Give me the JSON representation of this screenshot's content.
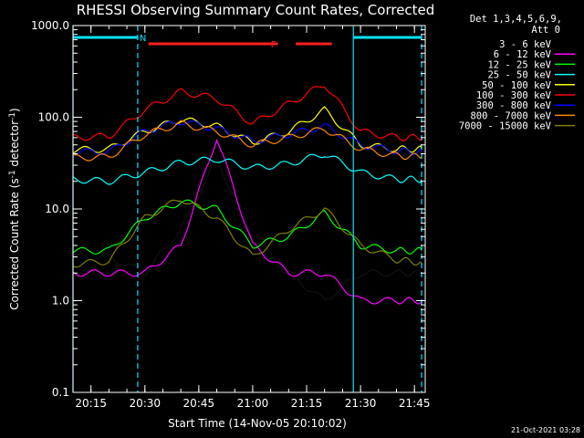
{
  "chart_data": {
    "type": "line",
    "title": "RHESSI Observing Summary Count Rates, Corrected",
    "xlabel": "Start Time (14-Nov-05 20:10:02)",
    "ylabel": "Corrected Count Rate (s⁻¹ detector⁻¹)",
    "ylabel_main": "Corrected Count Rate (s",
    "ylabel_sup1": "-1",
    "ylabel_mid": " detector",
    "ylabel_sup2": "-1",
    "ylabel_end": ")",
    "yscale": "log",
    "ylim": [
      0.1,
      1000
    ],
    "xlim": [
      "20:10",
      "21:48"
    ],
    "x_ticks": [
      "20:15",
      "20:30",
      "20:45",
      "21:00",
      "21:15",
      "21:30",
      "21:45"
    ],
    "y_ticks": [
      "0.1",
      "1.0",
      "10.0",
      "100.0",
      "1000.0"
    ],
    "legend_header": [
      "Det 1,3,4,5,6,9,",
      "Att 0"
    ],
    "legend_placement": "right",
    "timestamp": "21-Oct-2021 03:28",
    "flags": [
      {
        "label": "N",
        "color": "#00e5ff",
        "segments": [
          [
            "20:10",
            "20:28"
          ],
          [
            "21:28",
            "21:47"
          ]
        ]
      },
      {
        "label": "F",
        "color": "#ff2020",
        "segments": [
          [
            "20:31",
            "21:07"
          ],
          [
            "21:12",
            "21:22"
          ]
        ]
      }
    ],
    "markers": [
      {
        "time": "20:10",
        "style": "solid",
        "color": "#00e5ff"
      },
      {
        "time": "20:28",
        "style": "dashed",
        "color": "#00e5ff"
      },
      {
        "time": "21:28",
        "style": "solid",
        "color": "#00e5ff"
      },
      {
        "time": "21:47",
        "style": "dashed",
        "color": "#00e5ff"
      }
    ],
    "x": [
      "20:10",
      "20:20",
      "20:30",
      "20:40",
      "20:50",
      "21:00",
      "21:10",
      "21:20",
      "21:30",
      "21:40",
      "21:47"
    ],
    "series": [
      {
        "name": "3 - 6 keV",
        "color": "#000000",
        "values": [
          3,
          3,
          2,
          6,
          35,
          5,
          2,
          1,
          2,
          2,
          2
        ]
      },
      {
        "name": "6 - 12 keV",
        "color": "#ff00ff",
        "values": [
          2,
          2,
          2,
          4,
          60,
          4,
          2,
          2,
          1,
          1,
          1
        ]
      },
      {
        "name": "12 - 25 keV",
        "color": "#00ff00",
        "values": [
          3.5,
          3.5,
          8,
          12,
          10,
          4,
          5,
          9,
          4,
          3.5,
          3.5
        ]
      },
      {
        "name": "25 - 50 keV",
        "color": "#00ffff",
        "values": [
          21,
          20,
          25,
          32,
          35,
          28,
          31,
          40,
          25,
          21,
          21
        ]
      },
      {
        "name": "50 - 100 keV",
        "color": "#ffff00",
        "values": [
          44,
          45,
          70,
          95,
          80,
          53,
          70,
          120,
          50,
          45,
          45
        ]
      },
      {
        "name": "100 - 300 keV",
        "color": "#ff0000",
        "values": [
          60,
          62,
          120,
          190,
          160,
          85,
          140,
          230,
          70,
          60,
          60
        ]
      },
      {
        "name": "300 - 800 keV",
        "color": "#0000ff",
        "values": [
          42,
          42,
          70,
          90,
          75,
          55,
          65,
          80,
          50,
          43,
          42
        ]
      },
      {
        "name": "800 - 7000 keV",
        "color": "#ff8800",
        "values": [
          36,
          37,
          65,
          85,
          70,
          50,
          60,
          75,
          45,
          38,
          37
        ]
      },
      {
        "name": "7000 - 15000 keV",
        "color": "#808000",
        "values": [
          2.5,
          2.7,
          8,
          13,
          8,
          3,
          6,
          10,
          4,
          2.8,
          2.6
        ]
      }
    ]
  }
}
